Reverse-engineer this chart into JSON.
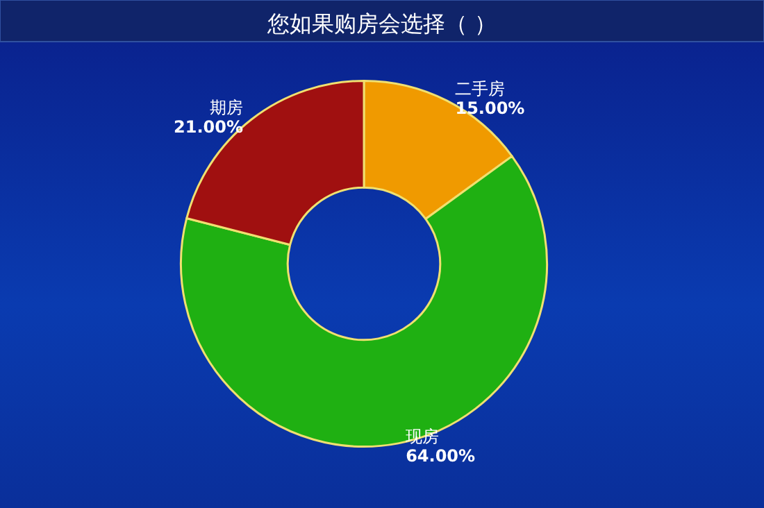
{
  "chart_data": {
    "type": "donut",
    "title": "您如果购房会选择（ ）",
    "categories": [
      "二手房",
      "现房",
      "期房"
    ],
    "values": [
      15,
      64,
      21
    ],
    "colors": [
      "#f09a00",
      "#1fb012",
      "#a01010"
    ],
    "value_labels": [
      "15.00%",
      "64.00%",
      "21.00%"
    ]
  }
}
